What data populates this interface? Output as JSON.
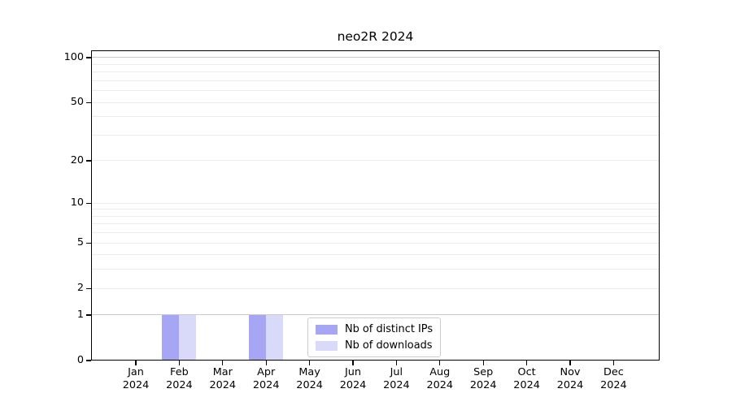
{
  "figure": {
    "title": "neo2R 2024"
  },
  "chart_data": {
    "type": "bar",
    "title": "neo2R 2024",
    "x_categories": [
      "Jan",
      "Feb",
      "Mar",
      "Apr",
      "May",
      "Jun",
      "Jul",
      "Aug",
      "Sep",
      "Oct",
      "Nov",
      "Dec"
    ],
    "x_year": "2024",
    "series": [
      {
        "name": "Nb of distinct IPs",
        "color": "#a6a6f4",
        "values": [
          0,
          1,
          0,
          1,
          0,
          0,
          0,
          0,
          0,
          0,
          0,
          0
        ]
      },
      {
        "name": "Nb of downloads",
        "color": "#d9d9f9",
        "values": [
          0,
          1,
          0,
          1,
          0,
          0,
          0,
          0,
          0,
          0,
          0,
          0
        ]
      }
    ],
    "y_scale": "log10(1+v)",
    "ylim": [
      0,
      100
    ],
    "y_tick_values": [
      0,
      1,
      2,
      5,
      10,
      20,
      50,
      100
    ],
    "y_gridlines_major": [
      1,
      100
    ],
    "y_gridlines_minor": [
      2,
      3,
      4,
      5,
      6,
      7,
      8,
      9,
      10,
      20,
      30,
      40,
      50,
      60,
      70,
      80,
      90
    ],
    "grid": true,
    "legend_position": "lower center"
  },
  "colors": {
    "major_gridline": "#c9c9c9",
    "minor_gridline": "#ececec",
    "spine": "#000000",
    "legend_border": "#cccccc",
    "text": "#000000"
  }
}
